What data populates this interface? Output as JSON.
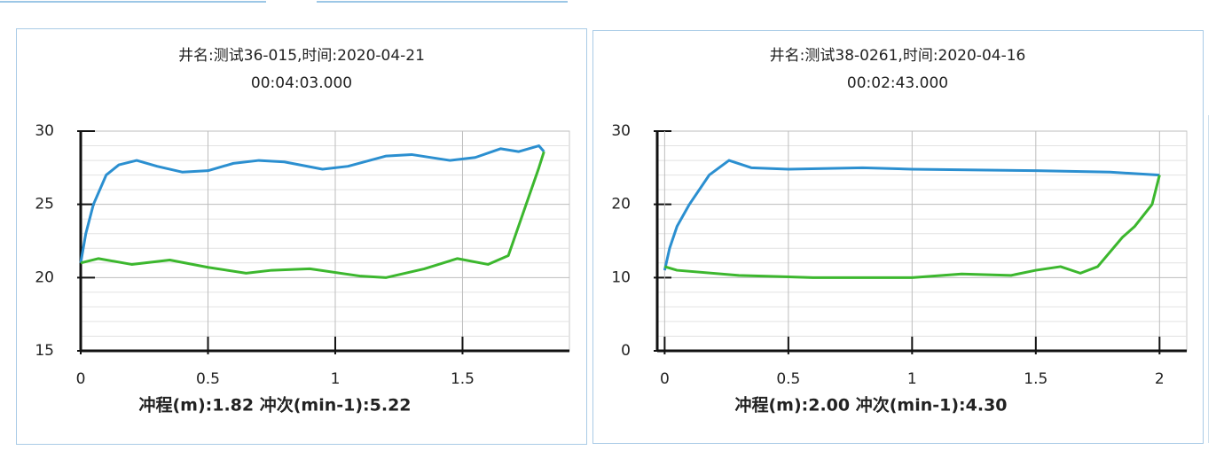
{
  "chart_data": [
    {
      "type": "line",
      "title": "井名:测试36-015,时间:2020-04-21",
      "subtitle": "00:04:03.000",
      "xlabel": "冲程(m):1.82 冲次(min-1):5.22",
      "xlim": [
        0,
        1.92
      ],
      "xticks": [
        0,
        0.5,
        1,
        1.5
      ],
      "ylim": [
        15,
        30
      ],
      "yticks": [
        15,
        20,
        25,
        30
      ],
      "grid": true,
      "series": [
        {
          "color": "#2b8fd0",
          "x": [
            0,
            0.02,
            0.05,
            0.1,
            0.15,
            0.22,
            0.3,
            0.4,
            0.5,
            0.6,
            0.7,
            0.8,
            0.95,
            1.05,
            1.2,
            1.3,
            1.45,
            1.55,
            1.65,
            1.72,
            1.8,
            1.82
          ],
          "y": [
            21,
            23,
            25,
            27,
            27.7,
            28,
            27.6,
            27.2,
            27.3,
            27.8,
            28,
            27.9,
            27.4,
            27.6,
            28.3,
            28.4,
            28,
            28.2,
            28.8,
            28.6,
            29,
            28.6
          ]
        },
        {
          "color": "#3cb72e",
          "x": [
            1.82,
            1.8,
            1.75,
            1.7,
            1.68,
            1.6,
            1.48,
            1.35,
            1.2,
            1.1,
            0.9,
            0.75,
            0.65,
            0.5,
            0.35,
            0.2,
            0.07,
            0
          ],
          "y": [
            28.6,
            27.5,
            25,
            22.5,
            21.5,
            20.9,
            21.3,
            20.6,
            20,
            20.1,
            20.6,
            20.5,
            20.3,
            20.7,
            21.2,
            20.9,
            21.3,
            21
          ]
        }
      ]
    },
    {
      "type": "line",
      "title": "井名:测试38-0261,时间:2020-04-16",
      "subtitle": "00:02:43.000",
      "xlabel": "冲程(m):2.00 冲次(min-1):4.30",
      "xlim": [
        -0.03,
        2.11
      ],
      "xticks": [
        0,
        0.5,
        1,
        1.5,
        2
      ],
      "ylim": [
        0,
        30
      ],
      "yticks": [
        0,
        10,
        20,
        30
      ],
      "grid": true,
      "series": [
        {
          "color": "#2b8fd0",
          "x": [
            0,
            0.02,
            0.05,
            0.1,
            0.18,
            0.26,
            0.35,
            0.5,
            0.8,
            1,
            1.5,
            1.8,
            2
          ],
          "y": [
            11,
            14,
            17,
            20,
            24,
            26,
            25,
            24.8,
            25,
            24.8,
            24.6,
            24.4,
            24
          ]
        },
        {
          "color": "#3cb72e",
          "x": [
            2,
            1.97,
            1.9,
            1.85,
            1.75,
            1.68,
            1.6,
            1.5,
            1.4,
            1.2,
            1,
            0.6,
            0.3,
            0.05,
            0
          ],
          "y": [
            24,
            20,
            17,
            15.5,
            11.5,
            10.6,
            11.5,
            11,
            10.3,
            10.5,
            10,
            10,
            10.3,
            11,
            11.5
          ]
        }
      ]
    }
  ]
}
